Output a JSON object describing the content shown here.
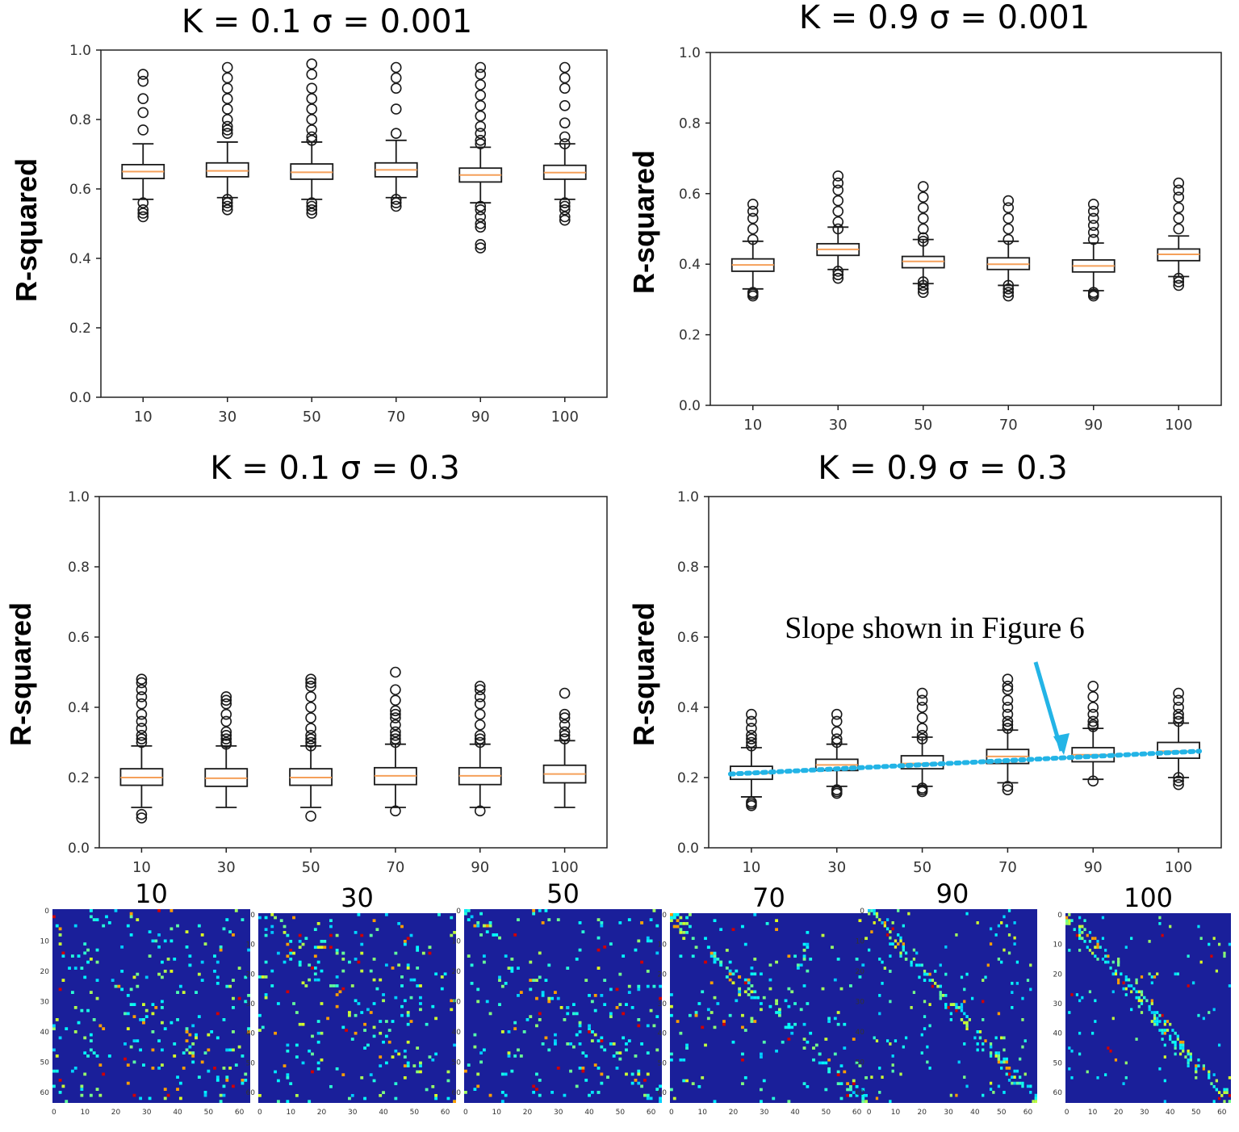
{
  "colors": {
    "box": "#1a1a1a",
    "median": "#f5a05a",
    "slope": "#23b4e6",
    "heatmap_bg": "#1a1f9a"
  },
  "chart_data": [
    {
      "type": "boxplot",
      "title": "K = 0.1 σ = 0.001",
      "ylabel": "R-squared",
      "xlabel": "",
      "ylim": [
        0,
        1.0
      ],
      "yticks": [
        "0.0",
        "0.2",
        "0.4",
        "0.6",
        "0.8",
        "1.0"
      ],
      "categories": [
        "10",
        "30",
        "50",
        "70",
        "90",
        "100"
      ],
      "boxes": [
        {
          "q1": 0.63,
          "median": 0.65,
          "q3": 0.67,
          "whisker_low": 0.57,
          "whisker_high": 0.73,
          "outliers": [
            0.52,
            0.53,
            0.54,
            0.56,
            0.77,
            0.82,
            0.86,
            0.91,
            0.93
          ]
        },
        {
          "q1": 0.635,
          "median": 0.652,
          "q3": 0.675,
          "whisker_low": 0.575,
          "whisker_high": 0.735,
          "outliers": [
            0.54,
            0.55,
            0.56,
            0.57,
            0.76,
            0.77,
            0.78,
            0.8,
            0.83,
            0.86,
            0.89,
            0.92,
            0.95
          ]
        },
        {
          "q1": 0.628,
          "median": 0.648,
          "q3": 0.672,
          "whisker_low": 0.57,
          "whisker_high": 0.735,
          "outliers": [
            0.53,
            0.54,
            0.55,
            0.56,
            0.74,
            0.75,
            0.77,
            0.8,
            0.83,
            0.86,
            0.89,
            0.93,
            0.96
          ]
        },
        {
          "q1": 0.635,
          "median": 0.655,
          "q3": 0.675,
          "whisker_low": 0.575,
          "whisker_high": 0.74,
          "outliers": [
            0.55,
            0.56,
            0.57,
            0.76,
            0.83,
            0.89,
            0.92,
            0.95
          ]
        },
        {
          "q1": 0.62,
          "median": 0.64,
          "q3": 0.66,
          "whisker_low": 0.56,
          "whisker_high": 0.72,
          "outliers": [
            0.43,
            0.44,
            0.49,
            0.5,
            0.52,
            0.54,
            0.55,
            0.73,
            0.74,
            0.76,
            0.78,
            0.81,
            0.84,
            0.87,
            0.9,
            0.93,
            0.95
          ]
        },
        {
          "q1": 0.628,
          "median": 0.647,
          "q3": 0.668,
          "whisker_low": 0.57,
          "whisker_high": 0.73,
          "outliers": [
            0.51,
            0.52,
            0.54,
            0.55,
            0.56,
            0.73,
            0.75,
            0.79,
            0.84,
            0.89,
            0.92,
            0.95
          ]
        }
      ]
    },
    {
      "type": "boxplot",
      "title": "K = 0.9 σ = 0.001",
      "ylabel": "R-squared",
      "xlabel": "",
      "ylim": [
        0,
        1.0
      ],
      "yticks": [
        "0.0",
        "0.2",
        "0.4",
        "0.6",
        "0.8",
        "1.0"
      ],
      "categories": [
        "10",
        "30",
        "50",
        "70",
        "90",
        "100"
      ],
      "boxes": [
        {
          "q1": 0.38,
          "median": 0.398,
          "q3": 0.415,
          "whisker_low": 0.33,
          "whisker_high": 0.465,
          "outliers": [
            0.31,
            0.315,
            0.32,
            0.47,
            0.5,
            0.53,
            0.55,
            0.57
          ]
        },
        {
          "q1": 0.425,
          "median": 0.442,
          "q3": 0.458,
          "whisker_low": 0.385,
          "whisker_high": 0.505,
          "outliers": [
            0.36,
            0.37,
            0.38,
            0.5,
            0.52,
            0.55,
            0.58,
            0.61,
            0.63,
            0.65
          ]
        },
        {
          "q1": 0.39,
          "median": 0.408,
          "q3": 0.422,
          "whisker_low": 0.345,
          "whisker_high": 0.47,
          "outliers": [
            0.32,
            0.33,
            0.34,
            0.35,
            0.465,
            0.475,
            0.5,
            0.53,
            0.56,
            0.59,
            0.62
          ]
        },
        {
          "q1": 0.385,
          "median": 0.4,
          "q3": 0.418,
          "whisker_low": 0.34,
          "whisker_high": 0.465,
          "outliers": [
            0.31,
            0.32,
            0.33,
            0.34,
            0.47,
            0.5,
            0.53,
            0.56,
            0.58
          ]
        },
        {
          "q1": 0.378,
          "median": 0.395,
          "q3": 0.412,
          "whisker_low": 0.325,
          "whisker_high": 0.46,
          "outliers": [
            0.31,
            0.315,
            0.32,
            0.47,
            0.49,
            0.51,
            0.53,
            0.55,
            0.57
          ]
        },
        {
          "q1": 0.41,
          "median": 0.428,
          "q3": 0.443,
          "whisker_low": 0.365,
          "whisker_high": 0.48,
          "outliers": [
            0.34,
            0.35,
            0.36,
            0.5,
            0.53,
            0.56,
            0.59,
            0.61,
            0.63
          ]
        }
      ]
    },
    {
      "type": "boxplot",
      "title": "K = 0.1 σ = 0.3",
      "ylabel": "R-squared",
      "xlabel": "",
      "ylim": [
        0,
        1.0
      ],
      "yticks": [
        "0.0",
        "0.2",
        "0.4",
        "0.6",
        "0.8",
        "1.0"
      ],
      "categories": [
        "10",
        "30",
        "50",
        "70",
        "90",
        "100"
      ],
      "boxes": [
        {
          "q1": 0.178,
          "median": 0.2,
          "q3": 0.225,
          "whisker_low": 0.115,
          "whisker_high": 0.29,
          "outliers": [
            0.085,
            0.095,
            0.3,
            0.31,
            0.32,
            0.34,
            0.36,
            0.38,
            0.41,
            0.43,
            0.45,
            0.47,
            0.48
          ]
        },
        {
          "q1": 0.175,
          "median": 0.198,
          "q3": 0.225,
          "whisker_low": 0.115,
          "whisker_high": 0.29,
          "outliers": [
            0.295,
            0.3,
            0.31,
            0.32,
            0.33,
            0.36,
            0.38,
            0.41,
            0.42,
            0.43
          ]
        },
        {
          "q1": 0.178,
          "median": 0.2,
          "q3": 0.225,
          "whisker_low": 0.115,
          "whisker_high": 0.29,
          "outliers": [
            0.09,
            0.29,
            0.3,
            0.31,
            0.32,
            0.34,
            0.37,
            0.4,
            0.43,
            0.46,
            0.47,
            0.48
          ]
        },
        {
          "q1": 0.18,
          "median": 0.205,
          "q3": 0.228,
          "whisker_low": 0.115,
          "whisker_high": 0.295,
          "outliers": [
            0.105,
            0.3,
            0.31,
            0.32,
            0.33,
            0.35,
            0.37,
            0.38,
            0.39,
            0.42,
            0.45,
            0.5
          ]
        },
        {
          "q1": 0.18,
          "median": 0.205,
          "q3": 0.228,
          "whisker_low": 0.115,
          "whisker_high": 0.295,
          "outliers": [
            0.105,
            0.3,
            0.31,
            0.32,
            0.35,
            0.38,
            0.41,
            0.43,
            0.45,
            0.46
          ]
        },
        {
          "q1": 0.185,
          "median": 0.21,
          "q3": 0.235,
          "whisker_low": 0.115,
          "whisker_high": 0.305,
          "outliers": [
            0.31,
            0.32,
            0.33,
            0.35,
            0.37,
            0.38,
            0.44
          ]
        }
      ]
    },
    {
      "type": "boxplot",
      "title": "K = 0.9 σ = 0.3",
      "ylabel": "R-squared",
      "xlabel": "",
      "ylim": [
        0,
        1.0
      ],
      "yticks": [
        "0.0",
        "0.2",
        "0.4",
        "0.6",
        "0.8",
        "1.0"
      ],
      "categories": [
        "10",
        "30",
        "50",
        "70",
        "90",
        "100"
      ],
      "boxes": [
        {
          "q1": 0.195,
          "median": 0.212,
          "q3": 0.232,
          "whisker_low": 0.145,
          "whisker_high": 0.285,
          "outliers": [
            0.12,
            0.125,
            0.13,
            0.29,
            0.3,
            0.31,
            0.32,
            0.34,
            0.36,
            0.38
          ]
        },
        {
          "q1": 0.22,
          "median": 0.236,
          "q3": 0.252,
          "whisker_low": 0.175,
          "whisker_high": 0.295,
          "outliers": [
            0.155,
            0.16,
            0.165,
            0.3,
            0.31,
            0.33,
            0.36,
            0.38
          ]
        },
        {
          "q1": 0.225,
          "median": 0.24,
          "q3": 0.262,
          "whisker_low": 0.175,
          "whisker_high": 0.315,
          "outliers": [
            0.16,
            0.165,
            0.17,
            0.31,
            0.32,
            0.34,
            0.37,
            0.4,
            0.42,
            0.44
          ]
        },
        {
          "q1": 0.24,
          "median": 0.26,
          "q3": 0.28,
          "whisker_low": 0.185,
          "whisker_high": 0.335,
          "outliers": [
            0.165,
            0.175,
            0.34,
            0.35,
            0.36,
            0.38,
            0.4,
            0.42,
            0.45,
            0.46,
            0.48
          ]
        },
        {
          "q1": 0.245,
          "median": 0.265,
          "q3": 0.285,
          "whisker_low": 0.195,
          "whisker_high": 0.34,
          "outliers": [
            0.19,
            0.345,
            0.35,
            0.36,
            0.38,
            0.4,
            0.43,
            0.46
          ]
        },
        {
          "q1": 0.255,
          "median": 0.275,
          "q3": 0.3,
          "whisker_low": 0.2,
          "whisker_high": 0.355,
          "outliers": [
            0.18,
            0.19,
            0.2,
            0.36,
            0.37,
            0.38,
            0.4,
            0.42,
            0.44
          ]
        }
      ],
      "trend_line": {
        "label": "Slope shown in Figure 6",
        "y": [
          0.21,
          0.235,
          0.242,
          0.255,
          0.265,
          0.275
        ]
      }
    }
  ],
  "heatmaps": {
    "labels": [
      "10",
      "30",
      "50",
      "70",
      "90",
      "100"
    ],
    "ticks": [
      "0",
      "10",
      "20",
      "30",
      "40",
      "50",
      "60"
    ]
  }
}
